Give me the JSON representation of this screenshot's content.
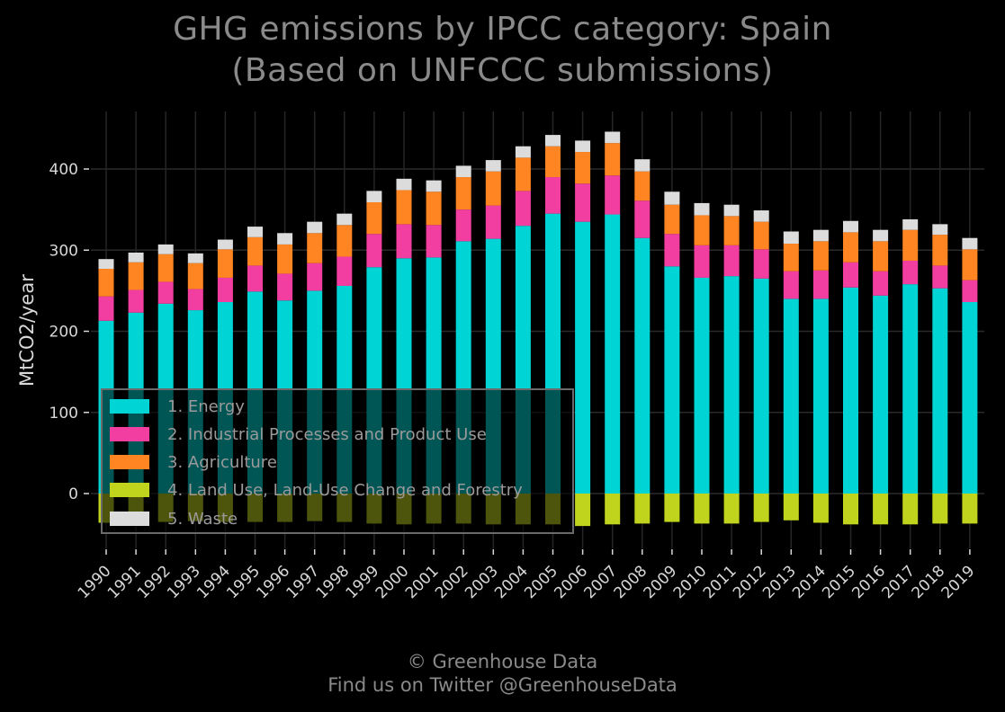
{
  "title": [
    "GHG emissions by IPCC category: Spain",
    "(Based on UNFCCC submissions)"
  ],
  "credit": [
    "© Greenhouse Data",
    "Find us on Twitter @GreenhouseData"
  ],
  "chart_data": {
    "type": "bar",
    "stacked": true,
    "title": "GHG emissions by IPCC category: Spain (Based on UNFCCC submissions)",
    "ylabel": "MtCO2/year",
    "xlabel": "",
    "ylim": [
      -65,
      470
    ],
    "yticks": [
      0,
      100,
      200,
      300,
      400
    ],
    "grid": true,
    "legend_position": "lower-left",
    "categories": [
      "1990",
      "1991",
      "1992",
      "1993",
      "1994",
      "1995",
      "1996",
      "1997",
      "1998",
      "1999",
      "2000",
      "2001",
      "2002",
      "2003",
      "2004",
      "2005",
      "2006",
      "2007",
      "2008",
      "2009",
      "2010",
      "2011",
      "2012",
      "2013",
      "2014",
      "2015",
      "2016",
      "2017",
      "2018",
      "2019"
    ],
    "series": [
      {
        "name": "1. Energy",
        "color": "#00d4d4",
        "values": [
          213,
          223,
          234,
          226,
          236,
          249,
          238,
          250,
          256,
          279,
          290,
          291,
          311,
          314,
          330,
          345,
          335,
          344,
          315,
          280,
          266,
          268,
          265,
          240,
          240,
          254,
          244,
          258,
          253,
          236
        ]
      },
      {
        "name": "2. Industrial Processes and Product Use",
        "color": "#f23ea1",
        "values": [
          30,
          28,
          27,
          26,
          30,
          32,
          33,
          34,
          36,
          41,
          42,
          40,
          39,
          41,
          43,
          45,
          47,
          48,
          46,
          40,
          40,
          38,
          36,
          34,
          35,
          31,
          30,
          29,
          28,
          27
        ]
      },
      {
        "name": "3. Agriculture",
        "color": "#ff8522",
        "values": [
          34,
          34,
          34,
          32,
          35,
          35,
          36,
          37,
          39,
          39,
          42,
          41,
          40,
          42,
          41,
          38,
          39,
          40,
          36,
          36,
          37,
          36,
          34,
          34,
          36,
          37,
          37,
          38,
          38,
          38
        ]
      },
      {
        "name": "4. Land Use, Land-Use Change and Forestry",
        "color": "#c0d41e",
        "values": [
          -36,
          -35,
          -35,
          -34,
          -35,
          -35,
          -35,
          -34,
          -35,
          -37,
          -38,
          -37,
          -37,
          -38,
          -38,
          -38,
          -40,
          -38,
          -37,
          -35,
          -37,
          -37,
          -35,
          -33,
          -36,
          -38,
          -38,
          -38,
          -37,
          -37
        ]
      },
      {
        "name": "5. Waste",
        "color": "#dcdcdc",
        "values": [
          12,
          12,
          12,
          12,
          12,
          13,
          14,
          14,
          14,
          14,
          14,
          14,
          14,
          14,
          14,
          14,
          14,
          14,
          15,
          16,
          15,
          14,
          14,
          15,
          14,
          14,
          14,
          13,
          13,
          14
        ]
      }
    ]
  }
}
